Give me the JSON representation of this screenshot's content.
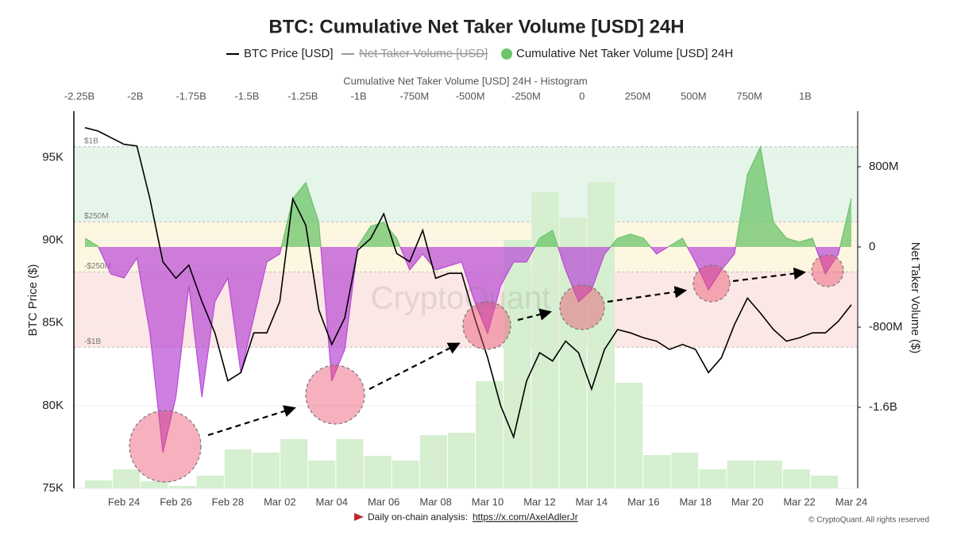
{
  "chart_data": [
    {
      "type": "line",
      "title": "BTC: Cumulative Net Taker Volume [USD] 24H",
      "watermark": "CryptoQuant",
      "y_label": "BTC Price ($)",
      "y2_label": "Net Taker Volume ($)",
      "categories": [
        null,
        null,
        null,
        "Feb 24",
        null,
        null,
        null,
        "Feb 26",
        null,
        null,
        null,
        "Feb 28",
        null,
        null,
        null,
        "Mar 02",
        null,
        null,
        null,
        "Mar 04",
        null,
        null,
        null,
        "Mar 06",
        null,
        null,
        null,
        "Mar 08",
        null,
        null,
        null,
        "Mar 10",
        null,
        null,
        null,
        "Mar 12",
        null,
        null,
        null,
        "Mar 14",
        null,
        null,
        null,
        "Mar 16",
        null,
        null,
        null,
        "Mar 18",
        null,
        null,
        null,
        "Mar 20",
        null,
        null,
        null,
        "Mar 22",
        null,
        null,
        null,
        "Mar 24"
      ],
      "ylim": [
        75000,
        97800
      ],
      "yticks": [
        {
          "value": 75000,
          "label": "75K"
        },
        {
          "value": 80000,
          "label": "80K"
        },
        {
          "value": 85000,
          "label": "85K"
        },
        {
          "value": 90000,
          "label": "90K"
        },
        {
          "value": 95000,
          "label": "95K"
        }
      ],
      "y2lim": [
        -2408000000,
        1354000000
      ],
      "y2ticks": [
        {
          "value": -1600000000,
          "label": "-1.6B"
        },
        {
          "value": -800000000,
          "label": "-800M"
        },
        0,
        {
          "value": 800000000,
          "label": "800M"
        }
      ],
      "grid": true,
      "bands": [
        {
          "from": 250000000,
          "to": 1000000000,
          "color": "#e6f5e9"
        },
        {
          "from": -250000000,
          "to": 250000000,
          "color": "#fdf6e1"
        },
        {
          "from": -1000000000,
          "to": -250000000,
          "color": "#fbe7e5"
        }
      ],
      "levels": [
        {
          "value": 1000000000,
          "label": "$1B"
        },
        {
          "value": 250000000,
          "label": "$250M"
        },
        {
          "value": -250000000,
          "label": "-$250M"
        },
        {
          "value": -1000000000,
          "label": "-$1B"
        }
      ],
      "series": [
        {
          "name": "BTC Price [USD]",
          "color": "#000000",
          "values": [
            96800,
            96600,
            96200,
            95800,
            95700,
            92500,
            88700,
            87700,
            88500,
            86300,
            84400,
            81500,
            82000,
            84400,
            84400,
            86300,
            92500,
            90900,
            85800,
            83700,
            85300,
            89400,
            90100,
            91600,
            89200,
            88700,
            90600,
            87700,
            88000,
            88000,
            85300,
            82900,
            80000,
            78100,
            81500,
            83200,
            82700,
            83900,
            83200,
            81000,
            83400,
            84600,
            84400,
            84100,
            83900,
            83400,
            83700,
            83400,
            82000,
            82900,
            84900,
            86500,
            85600,
            84600,
            83900,
            84100,
            84400,
            84400,
            85100,
            86100
          ]
        },
        {
          "name": "Net Taker Volume [USD]",
          "color": "#999999",
          "visible": false
        },
        {
          "name": "Cumulative Net Taker Volume [USD] 24H",
          "color": "#6cc46a",
          "negative_color": "#b84ad6",
          "axis": "y2",
          "values": [
            87000000,
            8000000,
            -270000000,
            -310000000,
            -110000000,
            -863000000,
            -2051000000,
            -1497000000,
            -388000000,
            -1497000000,
            -547000000,
            -309000000,
            -1259000000,
            -705000000,
            -150000000,
            -71000000,
            483000000,
            642000000,
            246000000,
            -1338000000,
            -1022000000,
            8000000,
            206000000,
            246000000,
            87000000,
            -230000000,
            -71000000,
            -230000000,
            -190000000,
            -150000000,
            -547000000,
            -863000000,
            -388000000,
            -150000000,
            -150000000,
            87000000,
            166000000,
            -230000000,
            -547000000,
            -428000000,
            -71000000,
            87000000,
            127000000,
            87000000,
            -71000000,
            8000000,
            87000000,
            -150000000,
            -428000000,
            -230000000,
            -71000000,
            721000000,
            998000000,
            246000000,
            87000000,
            48000000,
            87000000,
            -269000000,
            -71000000,
            483000000
          ]
        }
      ]
    },
    {
      "type": "histogram",
      "title": "Cumulative Net Taker Volume [USD] 24H - Histogram",
      "color": "#d5efd0",
      "xlim": [
        -2275000000,
        1235000000
      ],
      "xticks": [
        {
          "value": -2250000000,
          "label": "-2.25B"
        },
        {
          "value": -2000000000,
          "label": "-2B"
        },
        {
          "value": -1750000000,
          "label": "-1.75B"
        },
        {
          "value": -1500000000,
          "label": "-1.5B"
        },
        {
          "value": -1250000000,
          "label": "-1.25B"
        },
        {
          "value": -1000000000,
          "label": "-1B"
        },
        {
          "value": -750000000,
          "label": "-750M"
        },
        {
          "value": -500000000,
          "label": "-500M"
        },
        {
          "value": -250000000,
          "label": "-250M"
        },
        0,
        {
          "value": 250000000,
          "label": "250M"
        },
        {
          "value": 500000000,
          "label": "500M"
        },
        {
          "value": 750000000,
          "label": "750M"
        },
        {
          "value": 1000000000,
          "label": "1B"
        }
      ],
      "ylim": [
        0,
        475
      ],
      "bins": [
        -2225000000,
        -2100000000,
        -1975000000,
        -1850000000,
        -1725000000,
        -1600000000,
        -1475000000,
        -1350000000,
        -1225000000,
        -1100000000,
        -975000000,
        -850000000,
        -725000000,
        -600000000,
        -475000000,
        -350000000,
        -225000000,
        -100000000,
        25000000,
        150000000,
        275000000,
        400000000,
        525000000,
        650000000,
        775000000,
        900000000,
        1025000000,
        1150000000
      ],
      "counts": [
        10,
        24,
        9,
        3,
        16,
        49,
        45,
        62,
        35,
        62,
        41,
        35,
        67,
        70,
        135,
        313,
        373,
        341,
        386,
        133,
        42,
        45,
        24,
        35,
        35,
        24,
        16
      ]
    }
  ],
  "footer": {
    "text": "Daily on-chain analysis:",
    "link": "https://x.com/AxelAdlerJr",
    "copyright": "© CryptoQuant. All rights reserved"
  }
}
